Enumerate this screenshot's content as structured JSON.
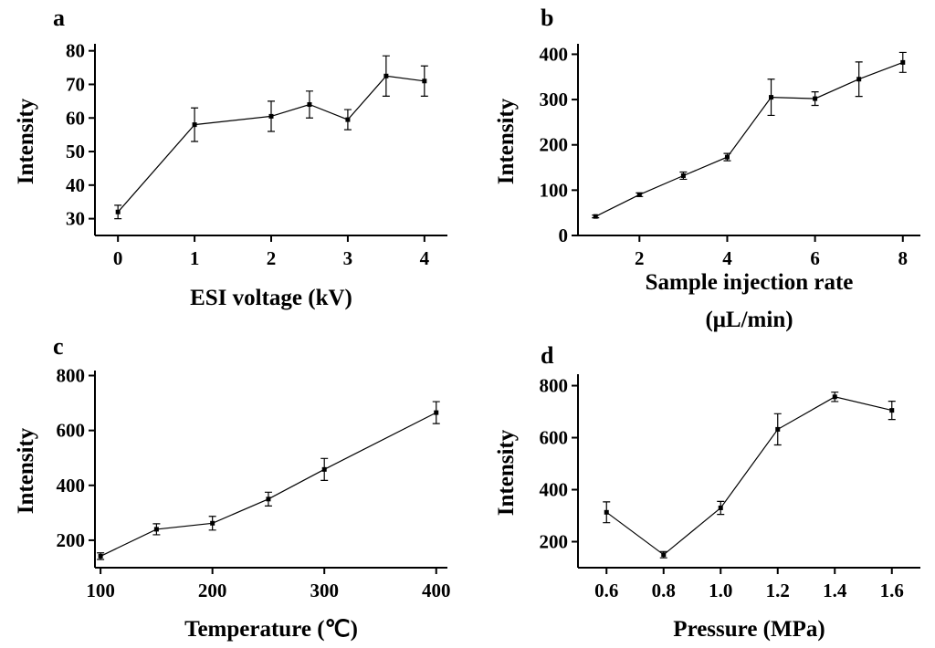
{
  "chart_data": [
    {
      "type": "line",
      "panel": "a",
      "title": "",
      "xlabel": "ESI voltage (kV)",
      "ylabel": "Intensity",
      "xlim": [
        -0.3,
        4.3
      ],
      "ylim": [
        25,
        81
      ],
      "xticks": [
        0,
        1,
        2,
        3,
        4
      ],
      "yticks": [
        30,
        40,
        50,
        60,
        70,
        80
      ],
      "grid": false,
      "x": [
        0,
        1,
        2,
        2.5,
        3,
        3.5,
        4
      ],
      "y": [
        32,
        58,
        60.5,
        64,
        59.5,
        72.5,
        71
      ],
      "err": [
        2,
        5,
        4.5,
        4,
        3,
        6,
        4.5
      ]
    },
    {
      "type": "line",
      "panel": "b",
      "title": "",
      "xlabel": "Sample injection rate",
      "xlabel2": "(μL/min)",
      "ylabel": "Intensity",
      "xlim": [
        0.6,
        8.4
      ],
      "ylim": [
        0,
        415
      ],
      "xticks": [
        2,
        4,
        6,
        8
      ],
      "yticks": [
        0,
        100,
        200,
        300,
        400
      ],
      "grid": false,
      "x": [
        1,
        2,
        3,
        4,
        5,
        6,
        7,
        8
      ],
      "y": [
        42,
        90,
        132,
        173,
        305,
        302,
        345,
        382
      ],
      "err": [
        3,
        4,
        8,
        8,
        40,
        15,
        38,
        22
      ]
    },
    {
      "type": "line",
      "panel": "c",
      "title": "",
      "xlabel": "Temperature (℃)",
      "ylabel": "Intensity",
      "xlim": [
        95,
        410
      ],
      "ylim": [
        100,
        805
      ],
      "xticks": [
        100,
        200,
        300,
        400
      ],
      "yticks": [
        200,
        400,
        600,
        800
      ],
      "grid": false,
      "x": [
        100,
        150,
        200,
        250,
        300,
        400
      ],
      "y": [
        142,
        240,
        262,
        350,
        458,
        665
      ],
      "err": [
        12,
        20,
        25,
        25,
        40,
        40
      ]
    },
    {
      "type": "line",
      "panel": "d",
      "title": "",
      "xlabel": "Pressure (MPa)",
      "ylabel": "Intensity",
      "xlim": [
        0.5,
        1.7
      ],
      "ylim": [
        100,
        830
      ],
      "xticks": [
        0.6,
        0.8,
        1.0,
        1.2,
        1.4,
        1.6
      ],
      "xtick_labels": [
        "0.6",
        "0.8",
        "1.0",
        "1.2",
        "1.4",
        "1.6"
      ],
      "yticks": [
        200,
        400,
        600,
        800
      ],
      "grid": false,
      "x": [
        0.6,
        0.8,
        1.0,
        1.2,
        1.4,
        1.6
      ],
      "y": [
        313,
        150,
        330,
        632,
        757,
        705
      ],
      "err": [
        40,
        12,
        25,
        60,
        18,
        35
      ]
    }
  ]
}
